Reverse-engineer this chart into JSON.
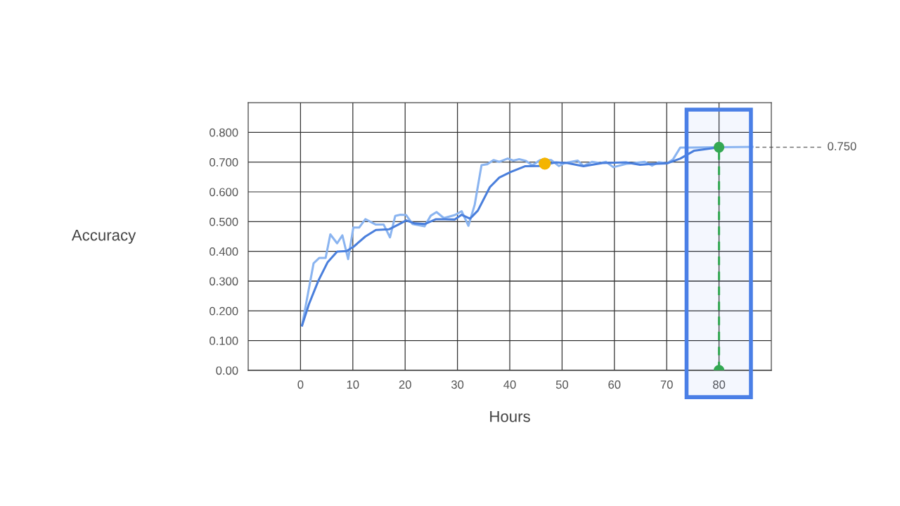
{
  "chart_data": {
    "type": "line",
    "xlabel": "Hours",
    "ylabel": "Accuracy",
    "xlim": [
      -10,
      90
    ],
    "xticks": [
      0,
      10,
      20,
      30,
      40,
      50,
      60,
      70,
      80
    ],
    "ylim": [
      0,
      0.9
    ],
    "yticks": [
      {
        "value": 0,
        "label": "0.00"
      },
      {
        "value": 0.1,
        "label": "0.100"
      },
      {
        "value": 0.2,
        "label": "0.200"
      },
      {
        "value": 0.3,
        "label": "0.300"
      },
      {
        "value": 0.4,
        "label": "0.400"
      },
      {
        "value": 0.5,
        "label": "0.500"
      },
      {
        "value": 0.6,
        "label": "0.600"
      },
      {
        "value": 0.7,
        "label": "0.700"
      },
      {
        "value": 0.8,
        "label": "0.800"
      }
    ],
    "grid": true,
    "legend": false,
    "series": [
      {
        "color": "#8ab4f0",
        "x": [
          0.3,
          2.5,
          3.6,
          4.8,
          5.7,
          7.0,
          8.0,
          9.1,
          10.1,
          11.2,
          12.4,
          14.4,
          15.9,
          17.1,
          18.1,
          19.1,
          20.2,
          21.4,
          23.7,
          24.9,
          26.0,
          27.4,
          29.5,
          30.8,
          32.1,
          32.6,
          33.3,
          34.6,
          35.7,
          36.9,
          38.0,
          39.6,
          40.7,
          41.8,
          43.1,
          44.3,
          45.8,
          47.9,
          49.4,
          50.5,
          53.0,
          54.1,
          55.7,
          57.3,
          58.4,
          59.8,
          62.2,
          65.8,
          67.2,
          68.5,
          70.1,
          71.2,
          72.6,
          74.3,
          80.0,
          86.4
        ],
        "values": [
          0.151,
          0.36,
          0.378,
          0.378,
          0.457,
          0.427,
          0.454,
          0.374,
          0.48,
          0.48,
          0.508,
          0.49,
          0.49,
          0.447,
          0.519,
          0.523,
          0.522,
          0.492,
          0.484,
          0.52,
          0.532,
          0.512,
          0.522,
          0.535,
          0.486,
          0.516,
          0.557,
          0.69,
          0.693,
          0.707,
          0.701,
          0.712,
          0.705,
          0.71,
          0.704,
          0.689,
          0.707,
          0.707,
          0.687,
          0.697,
          0.705,
          0.687,
          0.701,
          0.697,
          0.701,
          0.683,
          0.694,
          0.701,
          0.688,
          0.7,
          0.696,
          0.709,
          0.749,
          0.749,
          0.75,
          0.751
        ]
      },
      {
        "color": "#4a7fdc",
        "x": [
          0.3,
          1.6,
          3.4,
          5.2,
          7.0,
          8.8,
          10.1,
          12.4,
          14.4,
          16.9,
          18.7,
          20.2,
          21.8,
          23.8,
          25.9,
          27.6,
          29.5,
          30.8,
          32.4,
          33.9,
          36.2,
          38.0,
          40.2,
          42.9,
          45.6,
          48.8,
          51.0,
          54.1,
          57.7,
          62.2,
          64.9,
          67.2,
          70.1,
          72.6,
          75.2,
          78.4,
          80.0
        ],
        "values": [
          0.151,
          0.222,
          0.301,
          0.364,
          0.399,
          0.401,
          0.415,
          0.45,
          0.472,
          0.474,
          0.49,
          0.504,
          0.494,
          0.492,
          0.508,
          0.508,
          0.507,
          0.523,
          0.51,
          0.537,
          0.616,
          0.648,
          0.667,
          0.686,
          0.687,
          0.699,
          0.697,
          0.686,
          0.697,
          0.699,
          0.691,
          0.694,
          0.696,
          0.712,
          0.738,
          0.746,
          0.75
        ]
      },
      {
        "type": "scatter",
        "color": "#f4b400",
        "x": [
          46.7
        ],
        "values": [
          0.695
        ]
      },
      {
        "color": "#34a853",
        "line_style": "dashed",
        "marker": "circle",
        "x": [
          80,
          80
        ],
        "values": [
          0,
          0.75
        ]
      }
    ],
    "bands": [
      {
        "axis": "x",
        "from": 73.8,
        "to": 86.1,
        "color": "#4a7fe6"
      }
    ],
    "ref_lines": [
      {
        "axis": "y",
        "value": 0.75,
        "label": "0.750",
        "color": "#757575",
        "line_style": "dashed"
      }
    ]
  }
}
